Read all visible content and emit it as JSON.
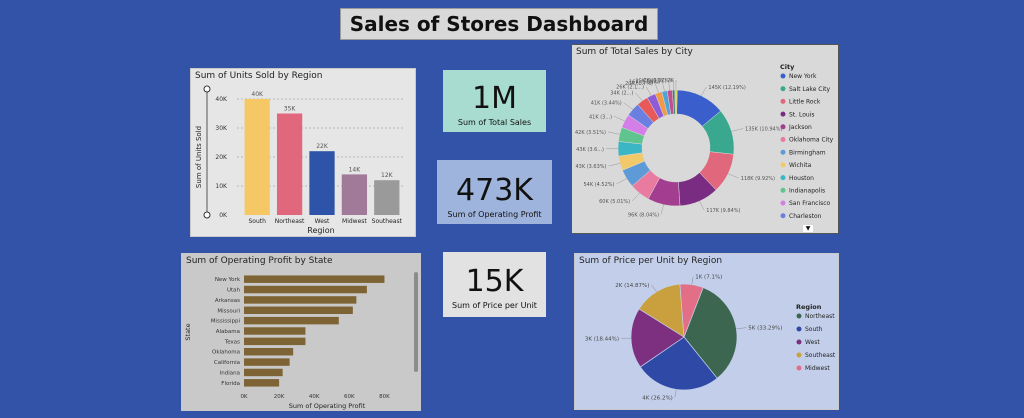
{
  "dashboard_title": "Sales of Stores Dashboard",
  "cards": {
    "total_sales": {
      "value": "1M",
      "label": "Sum of Total Sales"
    },
    "operating_profit": {
      "value": "473K",
      "label": "Sum of Operating Profit"
    },
    "price_per_unit": {
      "value": "15K",
      "label": "Sum of Price per Unit"
    }
  },
  "chart_data": [
    {
      "type": "bar",
      "title": "Sum of Units Sold by Region",
      "xlabel": "Region",
      "ylabel": "Sum of Units Sold",
      "categories": [
        "South",
        "Northeast",
        "West",
        "Midwest",
        "Southeast"
      ],
      "values": [
        40000,
        35000,
        22000,
        14000,
        12000
      ],
      "data_labels": [
        "40K",
        "35K",
        "22K",
        "14K",
        "12K"
      ],
      "yticks": [
        "0K",
        "10K",
        "20K",
        "30K",
        "40K"
      ],
      "ylim": [
        0,
        40000
      ],
      "colors": [
        "#f5c865",
        "#e0677c",
        "#2d54a8",
        "#a27a99",
        "#9a9a9a"
      ],
      "grid": true
    },
    {
      "type": "pie",
      "title": "Sum of Total Sales by City",
      "legend_title": "City",
      "legend": [
        "New York",
        "Salt Lake City",
        "Little Rock",
        "St. Louis",
        "Jackson",
        "Oklahoma City",
        "Birmingham",
        "Wichita",
        "Houston",
        "Indianapolis",
        "San Francisco",
        "Charleston"
      ],
      "slice_labels": [
        "145K (12.19%)",
        "135K (10.94%)",
        "118K (9.92%)",
        "117K (9.84%)",
        "96K (8.04%)",
        "60K (5.01%)",
        "54K (4.52%)",
        "43K (3.63%)",
        "43K (3.6...)",
        "42K (3.51%)",
        "41K (3...)",
        "41K (3.44%)",
        "34K (2...)",
        "26K (2.1...)",
        "20K (1.7%)",
        "16K (1.38%)",
        "15K (1.23%)",
        "7K (0.57%)",
        "7K"
      ],
      "values": [
        145,
        135,
        118,
        117,
        96,
        60,
        54,
        43,
        43,
        42,
        41,
        41,
        34,
        26,
        20,
        16,
        15,
        7,
        7
      ],
      "colors": [
        "#3a5fcd",
        "#3aa88e",
        "#e0677c",
        "#7a2c82",
        "#a33d90",
        "#e97aa0",
        "#5e9bd6",
        "#f1c96a",
        "#3ab6c4",
        "#5fc48e",
        "#d47ee8",
        "#6b7fe0",
        "#e85a5a",
        "#8e5cd6",
        "#f09a4a",
        "#4fa3d9",
        "#c24f8d",
        "#2f7f6f",
        "#e6d14a"
      ],
      "other_colors": [
        "#46b3c7",
        "#9bd15e",
        "#f0a13b",
        "#c66fd0",
        "#5a6fe6",
        "#e45c90",
        "#45a05c",
        "#8d6ad6"
      ]
    },
    {
      "type": "bar",
      "orientation": "horizontal",
      "title": "Sum of Operating Profit by State",
      "xlabel": "Sum of Operating Profit",
      "ylabel": "State",
      "categories": [
        "New York",
        "Utah",
        "Arkansas",
        "Missouri",
        "Mississippi",
        "Alabama",
        "Texas",
        "Oklahoma",
        "California",
        "Indiana",
        "Florida"
      ],
      "values": [
        80000,
        70000,
        64000,
        62000,
        54000,
        35000,
        35000,
        28000,
        26000,
        22000,
        20000
      ],
      "xticks": [
        "0K",
        "20K",
        "40K",
        "60K",
        "80K"
      ],
      "xlim": [
        0,
        90000
      ],
      "color": "#7e6434"
    },
    {
      "type": "pie",
      "title": "Sum of Price per Unit by Region",
      "legend_title": "Region",
      "legend": [
        "Northeast",
        "South",
        "West",
        "Southeast",
        "Midwest"
      ],
      "values": [
        33.29,
        26.2,
        18.44,
        14.87,
        7.1
      ],
      "slice_labels": [
        "5K (33.29%)",
        "4K (26.2%)",
        "3K (18.44%)",
        "2K (14.87%)",
        "1K (7.1%)"
      ],
      "colors": [
        "#3d6650",
        "#2e4aa6",
        "#7d2f80",
        "#c9a03d",
        "#e26f86"
      ]
    }
  ]
}
